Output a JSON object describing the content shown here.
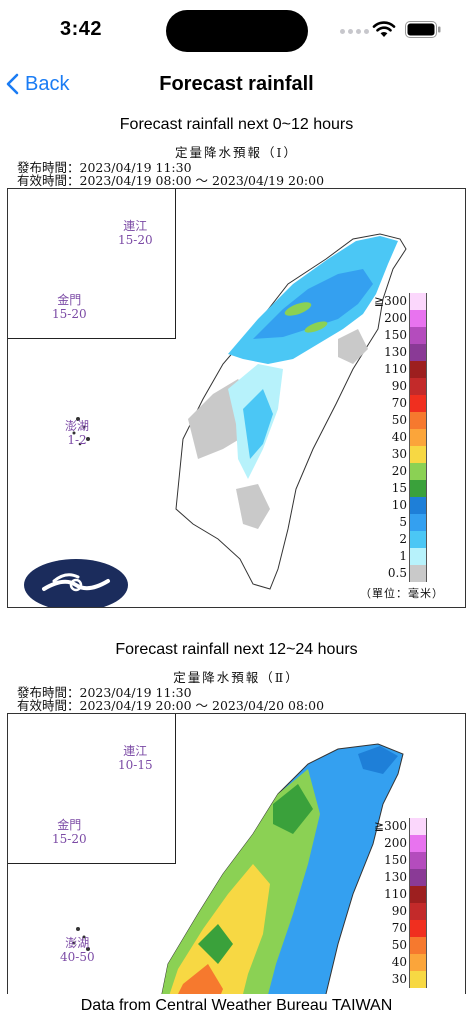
{
  "status_bar": {
    "time": "3:42"
  },
  "nav": {
    "back_label": "Back",
    "title": "Forecast rainfall"
  },
  "forecasts": [
    {
      "title": "Forecast rainfall next 0~12 hours",
      "chart_title": "定量降水預報（Ⅰ）",
      "issued": "發布時間：2023/04/19 11:30",
      "valid": "有效時間：2023/04/19 08:00 ～ 2023/04/19 20:00",
      "places": [
        {
          "name": "連江",
          "value": "15-20"
        },
        {
          "name": "金門",
          "value": "15-20"
        },
        {
          "name": "澎湖",
          "value": "1-2"
        }
      ],
      "unit": "（單位：毫米）"
    },
    {
      "title": "Forecast rainfall next 12~24 hours",
      "chart_title": "定量降水預報（Ⅱ）",
      "issued": "發布時間：2023/04/19 11:30",
      "valid": "有效時間：2023/04/19 20:00 ～ 2023/04/20 08:00",
      "places": [
        {
          "name": "連江",
          "value": "10-15"
        },
        {
          "name": "金門",
          "value": "15-20"
        },
        {
          "name": "澎湖",
          "value": "40-50"
        }
      ]
    }
  ],
  "legend": {
    "labels": [
      "≧300",
      "200",
      "150",
      "130",
      "110",
      "90",
      "70",
      "50",
      "40",
      "30",
      "20",
      "15",
      "10",
      "5",
      "2",
      "1",
      "0.5"
    ],
    "colors": [
      "#fbd7fc",
      "#e873ef",
      "#b44cbd",
      "#8a3a96",
      "#9d1f1f",
      "#c32a2a",
      "#f02f1f",
      "#f6792e",
      "#fba53a",
      "#f7d843",
      "#8bd154",
      "#3aa13b",
      "#1e7fd8",
      "#34a0f0",
      "#4bc7f5",
      "#b7f2fb",
      "#c9c9c9"
    ]
  },
  "footer": {
    "text": "Data from Central Weather Bureau TAIWAN"
  }
}
